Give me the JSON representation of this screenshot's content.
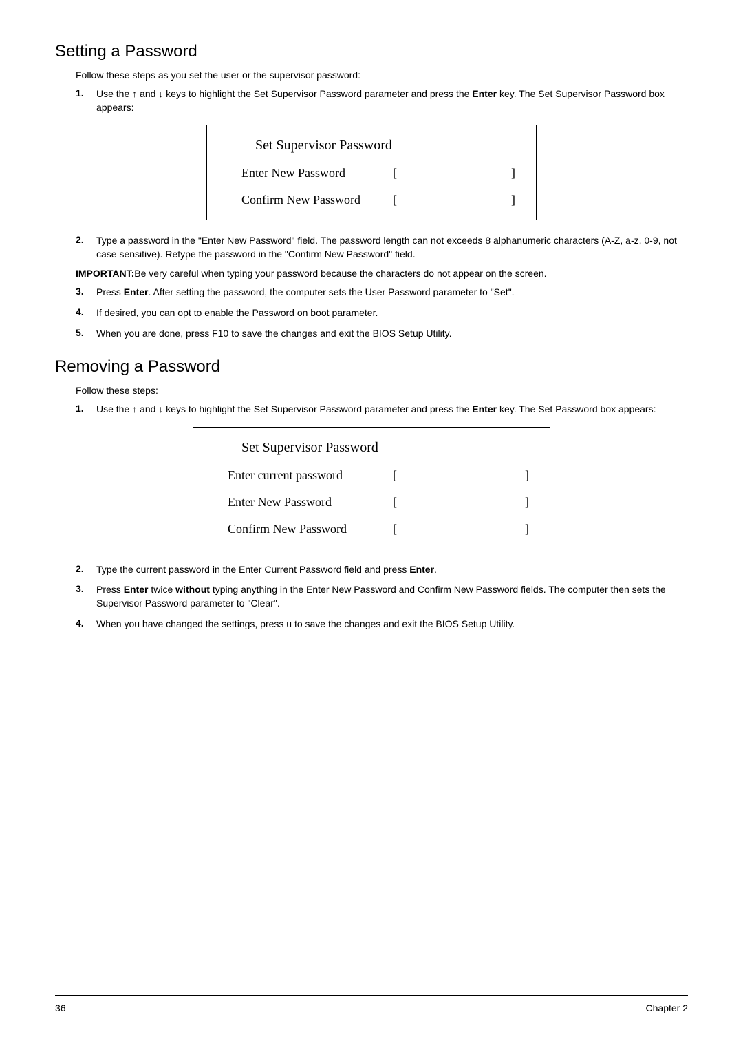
{
  "section1": {
    "title": "Setting a Password",
    "intro": "Follow these steps as you set the user or the supervisor password:",
    "step1_num": "1.",
    "step1_a": "Use the ",
    "step1_arrow1": "↑",
    "step1_b": " and ",
    "step1_arrow2": "↓",
    "step1_c": " keys to highlight the Set Supervisor Password parameter and press the ",
    "step1_enter": "Enter",
    "step1_d": " key. The Set Supervisor Password box appears:",
    "box1": {
      "title": "Set Supervisor Password",
      "row1_label": "Enter New Password",
      "row2_label": "Confirm New Password",
      "bracket_left": "[",
      "bracket_right": "]"
    },
    "step2_num": "2.",
    "step2_text": "Type a password in the \"Enter New Password\" field. The password length can not exceeds 8 alphanumeric characters (A-Z, a-z, 0-9, not case sensitive). Retype the password in the \"Confirm New Password\" field.",
    "important_label": "IMPORTANT:",
    "important_text": "Be very careful when typing your password because the characters do not appear on the screen.",
    "step3_num": "3.",
    "step3_a": "Press ",
    "step3_enter": "Enter",
    "step3_b": ". After setting the password, the computer sets the User Password parameter to \"Set\".",
    "step4_num": "4.",
    "step4_text": "If desired, you can opt to enable the Password on boot parameter.",
    "step5_num": "5.",
    "step5_text": "When you are done, press F10 to save the changes and exit the BIOS Setup Utility."
  },
  "section2": {
    "title": "Removing a Password",
    "intro": "Follow these steps:",
    "step1_num": "1.",
    "step1_a": "Use the ",
    "step1_arrow1": "↑",
    "step1_b": " and ",
    "step1_arrow2": "↓",
    "step1_c": " keys to highlight the Set Supervisor Password parameter and press the ",
    "step1_enter": "Enter",
    "step1_d": " key. The Set Password box appears:",
    "box2": {
      "title": "Set Supervisor Password",
      "row1_label": "Enter current password",
      "row2_label": "Enter New Password",
      "row3_label": "Confirm New Password",
      "bracket_left": "[",
      "bracket_right": "]"
    },
    "step2_num": "2.",
    "step2_a": "Type the current password in the Enter Current Password field and press ",
    "step2_enter": "Enter",
    "step2_b": ".",
    "step3_num": "3.",
    "step3_a": "Press ",
    "step3_enter": "Enter",
    "step3_b": " twice ",
    "step3_without": "without",
    "step3_c": " typing anything in the Enter New Password and Confirm New Password fields. The computer then sets the Supervisor Password parameter to \"Clear\".",
    "step4_num": "4.",
    "step4_text": "When you have changed the settings, press u to save the changes and exit the BIOS Setup Utility."
  },
  "footer": {
    "page": "36",
    "chapter": "Chapter 2"
  }
}
